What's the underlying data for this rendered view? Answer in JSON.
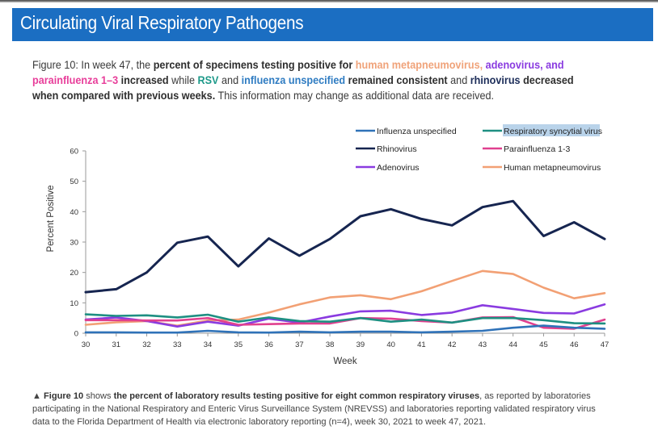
{
  "banner": {
    "title": "Circulating Viral Respiratory Pathogens"
  },
  "intro": {
    "p1": "Figure 10: In week 47, the ",
    "p2": "percent of specimens testing positive for ",
    "p3": "human metapneumovirus, ",
    "p4": "adenovirus, and ",
    "p5": "parainfluenza 1–3",
    "p6": " increased ",
    "p7": "while ",
    "p8": "RSV",
    "p9": " and ",
    "p10": "influenza unspecified",
    "p11": " remained consistent",
    "p12": " and ",
    "p13": "rhinovirus",
    "p14": " decreased when compared with previous weeks.",
    "p15": " This information may change as additional data are received."
  },
  "caption": {
    "marker": "▲",
    "c1": " Figure 10",
    "c2": " shows ",
    "c3": "the percent of laboratory results testing positive for eight common respiratory viruses",
    "c4": ", as reported by laboratories participating in the National Respiratory and Enteric Virus Surveillance System (NREVSS) and laboratories reporting validated respiratory virus data to the Florida Department of Health via electronic laboratory reporting (n=4), week 30, 2021 to week 47, 2021."
  },
  "chart_data": {
    "type": "line",
    "title": "",
    "xlabel": "Week",
    "ylabel": "Percent Positive",
    "x": [
      30,
      31,
      32,
      33,
      34,
      35,
      36,
      37,
      38,
      39,
      40,
      41,
      42,
      43,
      44,
      45,
      46,
      47
    ],
    "xlim": [
      30,
      47
    ],
    "ylim": [
      0,
      60
    ],
    "yticks": [
      0,
      10,
      20,
      30,
      40,
      50,
      60
    ],
    "grid": false,
    "legend_position": "top-right",
    "series": [
      {
        "name": "Influenza unspecified",
        "color": "#2f72b8",
        "values": [
          0.3,
          0.3,
          0.2,
          0.2,
          0.8,
          0.3,
          0.2,
          0.5,
          0.3,
          0.5,
          0.5,
          0.3,
          0.5,
          0.8,
          1.8,
          2.5,
          1.8,
          1.5
        ]
      },
      {
        "name": "Respiratory syncytial virus",
        "color": "#1e8f82",
        "values": [
          6.2,
          5.7,
          5.9,
          5.2,
          6.1,
          3.8,
          5.2,
          4.0,
          3.8,
          5.0,
          3.8,
          4.5,
          3.5,
          5.0,
          5.0,
          4.3,
          3.3,
          3.2
        ]
      },
      {
        "name": "Rhinovirus",
        "color": "#162550",
        "values": [
          13.5,
          14.5,
          20.0,
          29.8,
          31.8,
          22.0,
          31.2,
          25.5,
          31.0,
          38.5,
          40.8,
          37.6,
          35.5,
          41.5,
          43.5,
          32.0,
          36.5,
          31.0
        ]
      },
      {
        "name": "Parainfluenza 1-3",
        "color": "#e0408f",
        "values": [
          4.3,
          4.3,
          4.2,
          4.2,
          5.0,
          2.8,
          3.0,
          3.2,
          3.2,
          5.0,
          4.8,
          4.0,
          3.5,
          5.2,
          5.3,
          1.8,
          1.5,
          4.5
        ]
      },
      {
        "name": "Adenovirus",
        "color": "#8a3be0",
        "values": [
          4.5,
          5.2,
          4.0,
          2.2,
          3.8,
          2.5,
          4.8,
          3.5,
          5.5,
          7.2,
          7.4,
          6.0,
          6.8,
          9.2,
          8.0,
          6.7,
          6.5,
          9.5
        ]
      },
      {
        "name": "Human metapneumovirus",
        "color": "#f2a074",
        "values": [
          2.8,
          3.6,
          4.0,
          2.5,
          4.2,
          4.5,
          6.8,
          9.5,
          11.8,
          12.5,
          11.2,
          13.8,
          17.2,
          20.5,
          19.5,
          15.0,
          11.5,
          13.2
        ]
      }
    ],
    "highlighted_legend_entry": "Respiratory syncytial virus"
  }
}
